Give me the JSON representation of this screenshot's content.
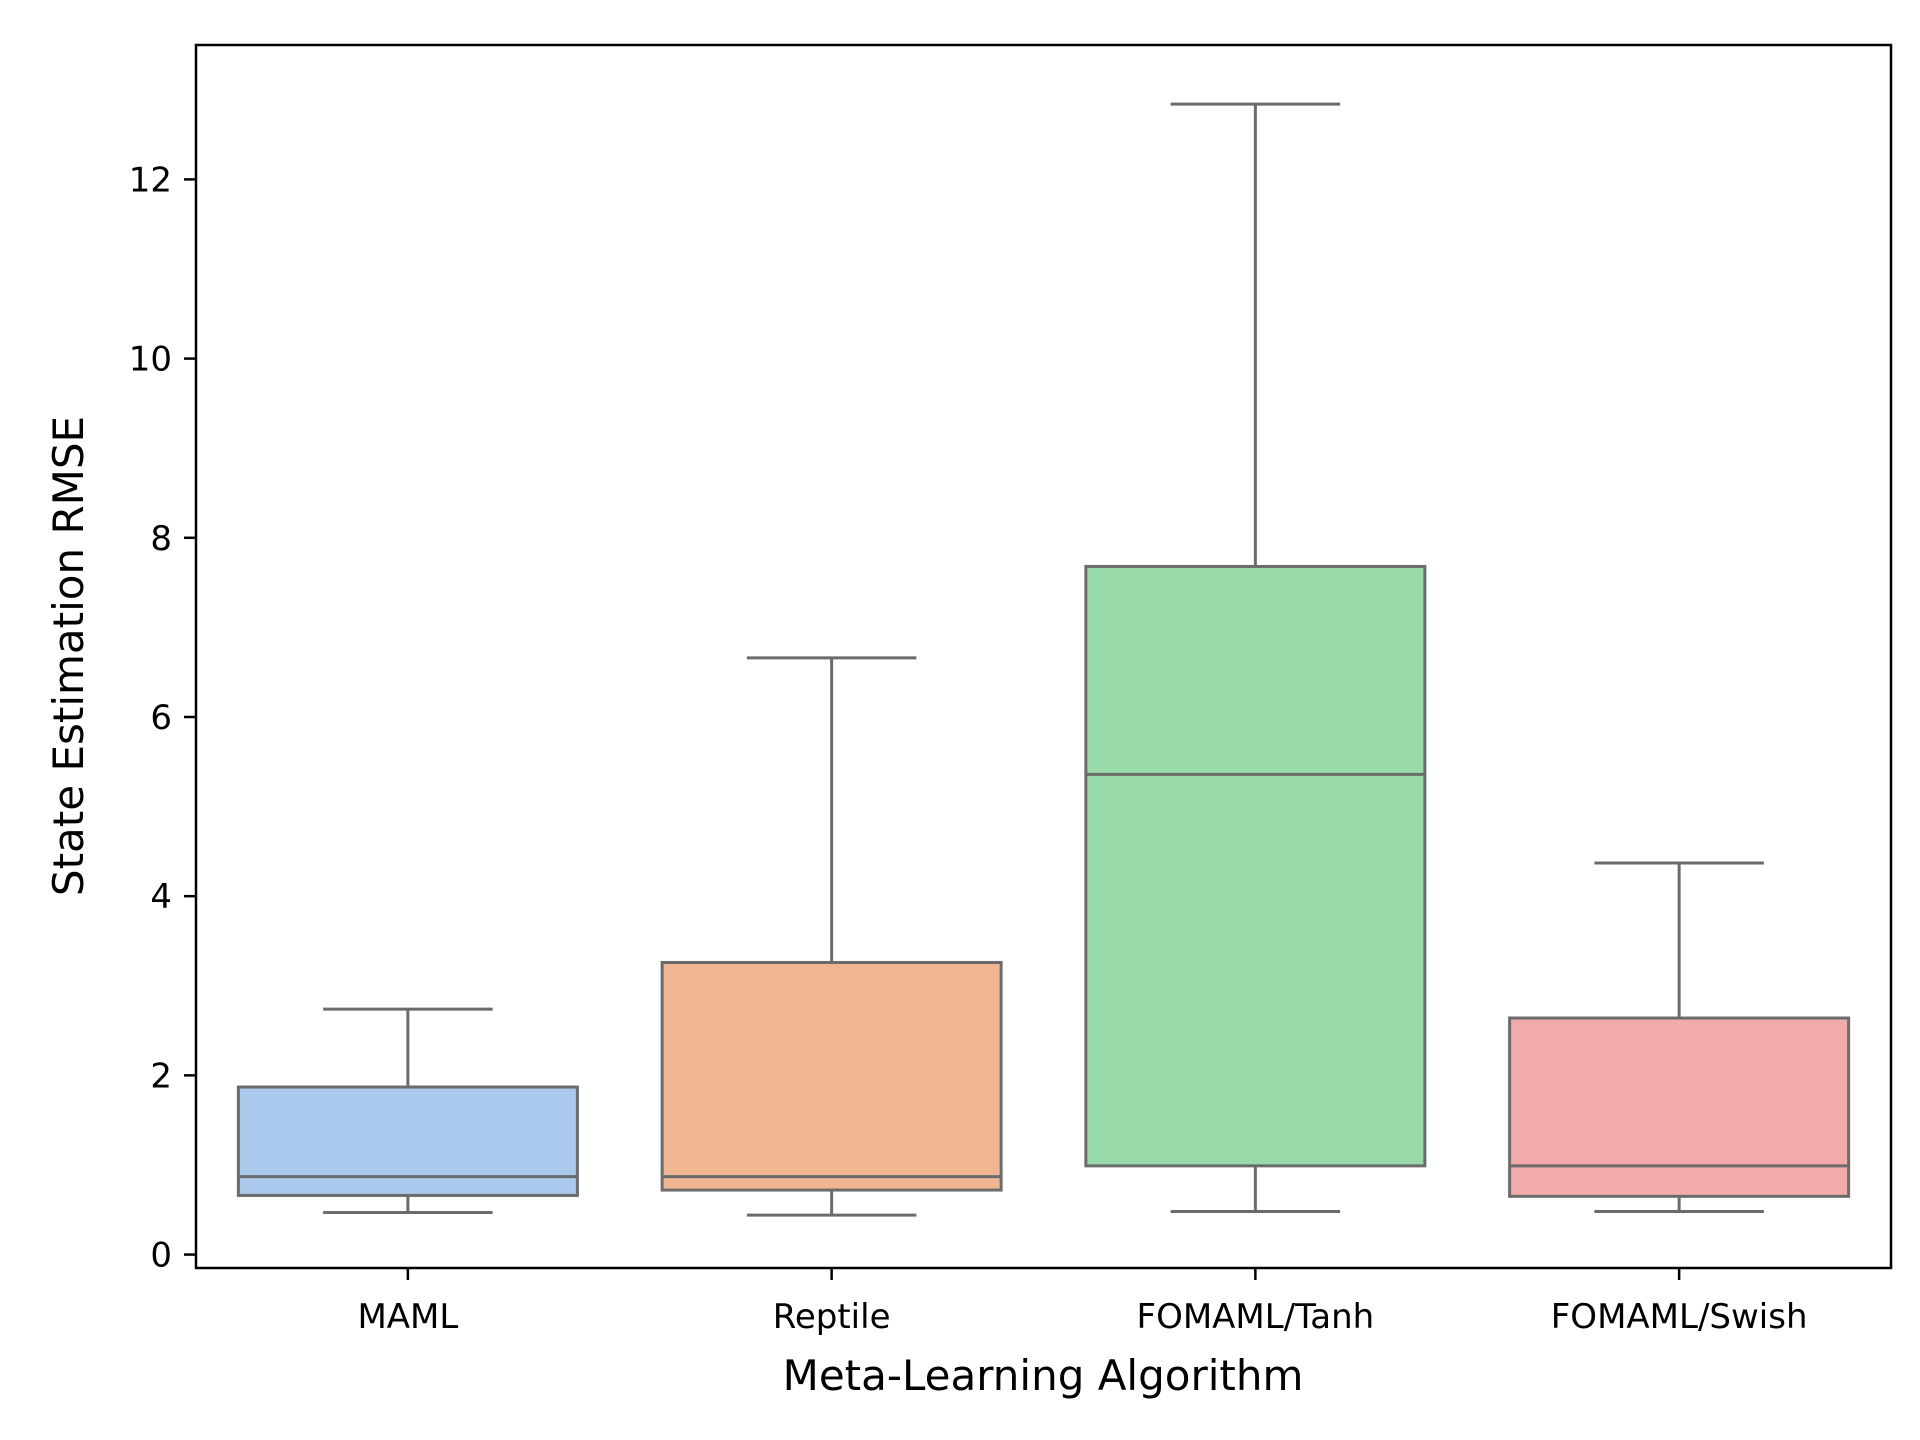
{
  "chart_data": {
    "type": "box",
    "title": "",
    "xlabel": "Meta-Learning Algorithm",
    "ylabel": "State Estimation RMSE",
    "ylim": [
      -0.15,
      13.5
    ],
    "yticks": [
      0,
      2,
      4,
      6,
      8,
      10,
      12
    ],
    "grid": false,
    "categories": [
      "MAML",
      "Reptile",
      "FOMAML/Tanh",
      "FOMAML/Swish"
    ],
    "boxes": [
      {
        "category": "MAML",
        "whisker_low": 0.47,
        "q1": 0.66,
        "median": 0.87,
        "q3": 1.87,
        "whisker_high": 2.74,
        "color": "#abc9ec"
      },
      {
        "category": "Reptile",
        "whisker_low": 0.44,
        "q1": 0.72,
        "median": 0.87,
        "q3": 3.26,
        "whisker_high": 6.66,
        "color": "#f0b692"
      },
      {
        "category": "FOMAML/Tanh",
        "whisker_low": 0.48,
        "q1": 0.99,
        "median": 5.36,
        "q3": 7.68,
        "whisker_high": 12.84,
        "color": "#99dba8"
      },
      {
        "category": "FOMAML/Swish",
        "whisker_low": 0.48,
        "q1": 0.65,
        "median": 0.99,
        "q3": 2.64,
        "whisker_high": 4.37,
        "color": "#f2aaaa"
      }
    ],
    "line_color": "#6b6b6b"
  }
}
